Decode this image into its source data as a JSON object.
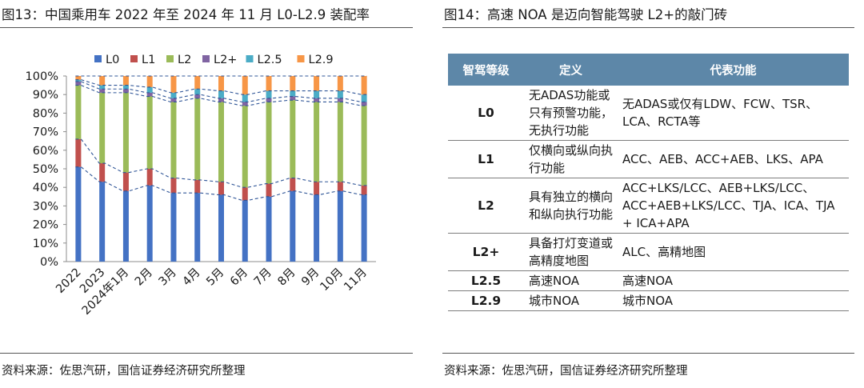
{
  "left": {
    "figure_label": "图13：",
    "title": "中国乘用车 2022 年至 2024 年 11 月 L0-L2.9 装配率",
    "source": "资料来源：佐思汽研，国信证券经济研究所整理"
  },
  "right": {
    "figure_label": "图14：",
    "title": "高速 NOA 是迈向智能驾驶 L2+的敲门砖",
    "source": "资料来源：佐思汽研，国信证券经济研究所整理",
    "table": {
      "headers": [
        "智驾等级",
        "定义",
        "代表功能"
      ],
      "rows": [
        {
          "level": "L0",
          "definition": "无ADAS功能或只有预警功能，无执行功能",
          "functions": "无ADAS或仅有LDW、FCW、TSR、LCA、RCTA等"
        },
        {
          "level": "L1",
          "definition": "仅横向或纵向执行功能",
          "functions": "ACC、AEB、ACC+AEB、LKS、APA"
        },
        {
          "level": "L2",
          "definition": "具有独立的横向和纵向执行功能",
          "functions": "ACC+LKS/LCC、AEB+LKS/LCC、ACC+AEB+LKS/LCC、TJA、ICA、TJA + ICA+APA"
        },
        {
          "level": "L2+",
          "definition": "具备打灯变道或高精度地图",
          "functions": "ALC、高精地图"
        },
        {
          "level": "L2.5",
          "definition": "高速NOA",
          "functions": "高速NOA"
        },
        {
          "level": "L2.9",
          "definition": "城市NOA",
          "functions": "城市NOA"
        }
      ]
    }
  },
  "chart_data": {
    "type": "bar",
    "stacked": true,
    "title": "中国乘用车 2022 年至 2024 年 11 月 L0-L2.9 装配率",
    "xlabel": "",
    "ylabel": "",
    "ylim": [
      0,
      100
    ],
    "yticks": [
      "0%",
      "10%",
      "20%",
      "30%",
      "40%",
      "50%",
      "60%",
      "70%",
      "80%",
      "90%",
      "100%"
    ],
    "categories": [
      "2022",
      "2023",
      "2024年1月",
      "2月",
      "3月",
      "4月",
      "5月",
      "6月",
      "7月",
      "8月",
      "9月",
      "10月",
      "11月"
    ],
    "legend_position": "top",
    "series": [
      {
        "name": "L0",
        "color": "#4472c4",
        "values": [
          51,
          43,
          38,
          41,
          37,
          37,
          36,
          33,
          35,
          38,
          36,
          38,
          36
        ]
      },
      {
        "name": "L1",
        "color": "#c0504d",
        "values": [
          15,
          10,
          10,
          9,
          8,
          7,
          7,
          7,
          7,
          7,
          7,
          5,
          5
        ]
      },
      {
        "name": "L2",
        "color": "#9bbb59",
        "values": [
          29,
          38,
          43,
          39,
          41,
          44,
          43,
          44,
          44,
          42,
          43,
          43,
          43
        ]
      },
      {
        "name": "L2+",
        "color": "#8064a2",
        "values": [
          2,
          2,
          2,
          2,
          2,
          2,
          2,
          2,
          2,
          2,
          2,
          2,
          2
        ]
      },
      {
        "name": "L2.5",
        "color": "#4bacc6",
        "values": [
          1,
          2,
          2,
          3,
          3,
          3,
          4,
          4,
          4,
          3,
          4,
          4,
          4
        ]
      },
      {
        "name": "L2.9",
        "color": "#f79646",
        "values": [
          2,
          5,
          5,
          6,
          9,
          7,
          8,
          10,
          8,
          8,
          8,
          8,
          10
        ]
      }
    ]
  }
}
